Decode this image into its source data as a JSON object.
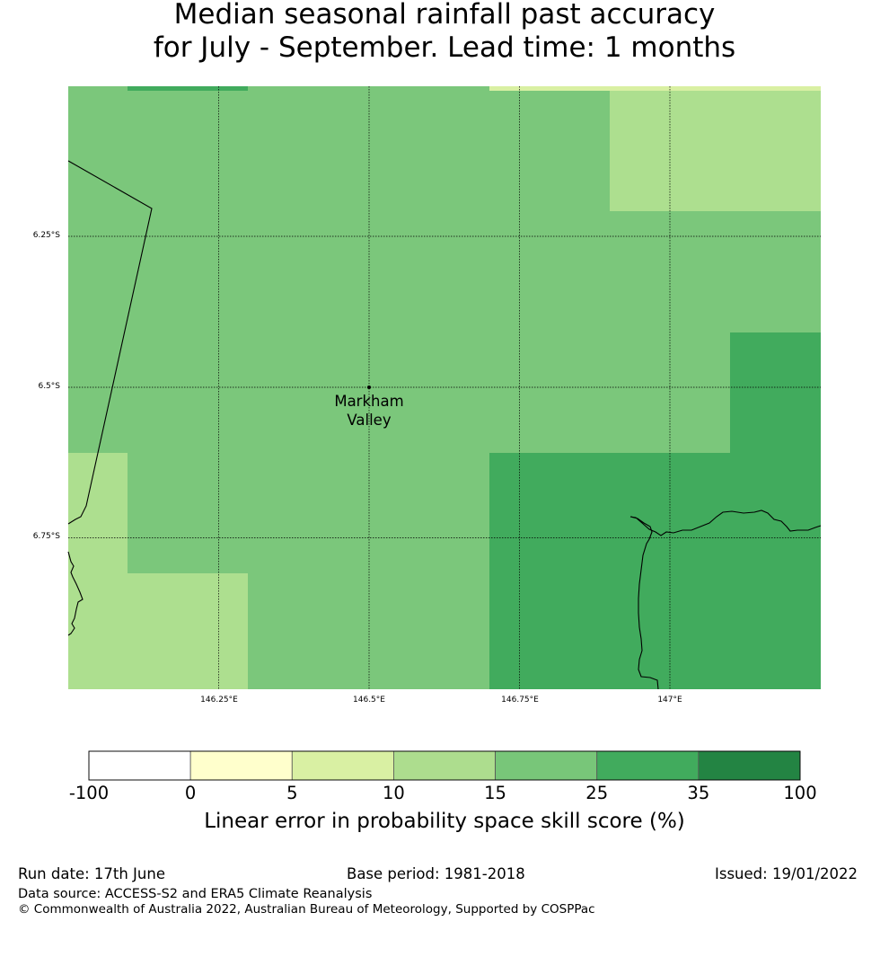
{
  "title": {
    "line1": "Median seasonal rainfall past accuracy",
    "line2": "for July - September. Lead time: 1 months"
  },
  "map": {
    "lat_labels": [
      "6.25°S",
      "6.5°S",
      "6.75°S"
    ],
    "lon_labels": [
      "146.25°E",
      "146.5°E",
      "146.75°E",
      "147°E"
    ],
    "place": {
      "line1": "Markham",
      "line2": "Valley"
    },
    "colors": {
      "class_15_25": "#7bc77b",
      "class_10_15": "#addf8f",
      "class_25_35": "#41ab5d",
      "class_5_10": "#d9f0a3"
    }
  },
  "colorbar": {
    "ticks": [
      "-100",
      "0",
      "5",
      "10",
      "15",
      "25",
      "35",
      "100"
    ],
    "colors": [
      "#ffffff",
      "#ffffcc",
      "#d9f0a3",
      "#addd8e",
      "#78c679",
      "#41ab5d",
      "#238443"
    ],
    "label": "Linear error in probability space skill score (%)"
  },
  "footer": {
    "run_date": "Run date: 17th June",
    "base_period": "Base period: 1981-2018",
    "issued": "Issued: 19/01/2022",
    "data_source": "Data source: ACCESS-S2 and ERA5 Climate Reanalysis",
    "copyright": "© Commonwealth of Australia 2022, Australian Bureau of Meteorology, Supported by COSPPac"
  }
}
